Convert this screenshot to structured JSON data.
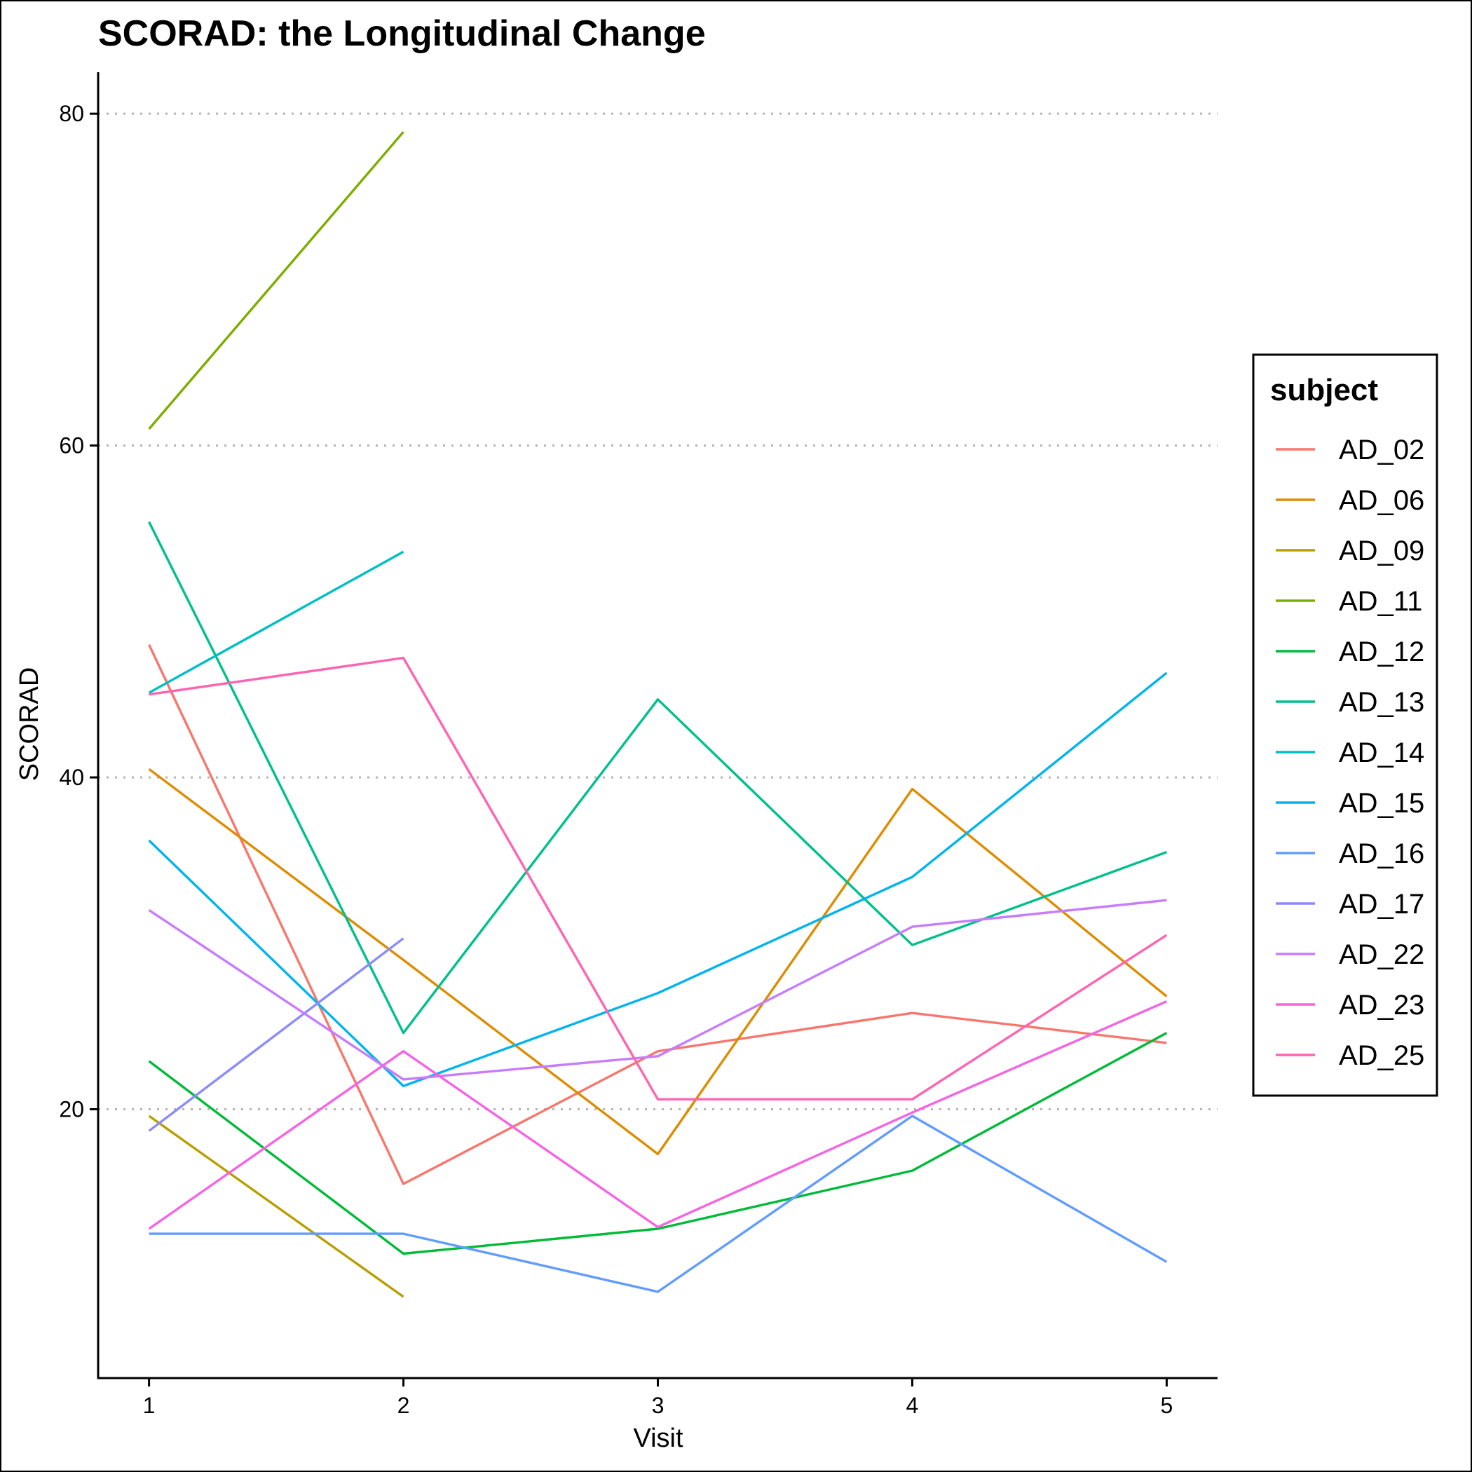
{
  "chart_data": {
    "type": "line",
    "title": "SCORAD: the Longitudinal Change",
    "xlabel": "Visit",
    "ylabel": "SCORAD",
    "x_ticks": [
      1,
      2,
      3,
      4,
      5
    ],
    "y_ticks": [
      20,
      40,
      60,
      80
    ],
    "xlim": [
      0.8,
      5.2
    ],
    "ylim": [
      3.8,
      82.5
    ],
    "grid": "horizontal dotted",
    "legend": {
      "title": "subject",
      "placement": "right"
    },
    "series": [
      {
        "name": "AD_02",
        "color": "#F8766D",
        "x": [
          1,
          2,
          3,
          4,
          5
        ],
        "y": [
          48,
          15.5,
          23.5,
          25.8,
          24
        ]
      },
      {
        "name": "AD_06",
        "color": "#DE8C00",
        "x": [
          1,
          2,
          3,
          4,
          5
        ],
        "y": [
          40.5,
          29,
          17.3,
          39.3,
          26.8
        ]
      },
      {
        "name": "AD_09",
        "color": "#B79F00",
        "x": [
          1,
          2
        ],
        "y": [
          19.6,
          8.7
        ]
      },
      {
        "name": "AD_11",
        "color": "#7CAE00",
        "x": [
          1,
          2
        ],
        "y": [
          61,
          78.9
        ]
      },
      {
        "name": "AD_12",
        "color": "#00BA38",
        "x": [
          1,
          2,
          3,
          4,
          5
        ],
        "y": [
          22.9,
          11.3,
          12.8,
          16.3,
          24.6
        ]
      },
      {
        "name": "AD_13",
        "color": "#00C08B",
        "x": [
          1,
          2,
          3,
          4,
          5
        ],
        "y": [
          55.4,
          24.6,
          44.7,
          29.9,
          35.5
        ]
      },
      {
        "name": "AD_14",
        "color": "#00BFC4",
        "x": [
          1,
          2
        ],
        "y": [
          45.1,
          53.6
        ]
      },
      {
        "name": "AD_15",
        "color": "#00B4F0",
        "x": [
          1,
          2,
          3,
          4,
          5
        ],
        "y": [
          36.2,
          21.4,
          27,
          34,
          46.3
        ]
      },
      {
        "name": "AD_16",
        "color": "#619CFF",
        "x": [
          1,
          2,
          3,
          4,
          5
        ],
        "y": [
          12.5,
          12.5,
          9,
          19.6,
          10.8
        ]
      },
      {
        "name": "AD_17",
        "color": "#8B8BFF",
        "x": [
          1,
          2
        ],
        "y": [
          18.7,
          30.3
        ]
      },
      {
        "name": "AD_22",
        "color": "#C77CFF",
        "x": [
          1,
          2,
          3,
          4,
          5
        ],
        "y": [
          32,
          21.8,
          23.2,
          31,
          32.6
        ]
      },
      {
        "name": "AD_23",
        "color": "#F564E3",
        "x": [
          1,
          2,
          3,
          4,
          5
        ],
        "y": [
          12.8,
          23.5,
          12.9,
          19.8,
          26.5
        ]
      },
      {
        "name": "AD_25",
        "color": "#FF64B0",
        "x": [
          1,
          2,
          3,
          4,
          5
        ],
        "y": [
          45,
          47.2,
          20.6,
          20.6,
          30.5
        ]
      }
    ]
  }
}
